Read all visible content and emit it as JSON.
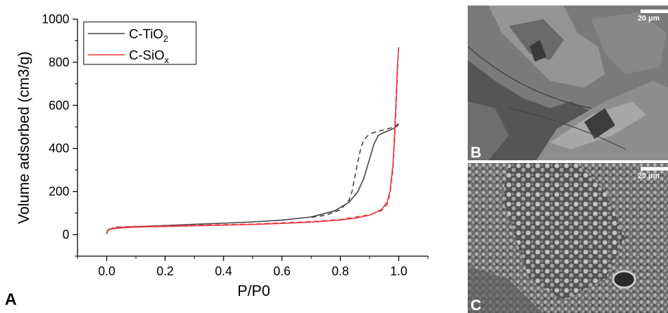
{
  "chart_data": {
    "type": "line",
    "panel_label": "A",
    "xlabel": "P/P0",
    "ylabel": "Volume adsorbed (cm3/g)",
    "xlim": [
      -0.1,
      1.1
    ],
    "ylim": [
      -100,
      1000
    ],
    "xticks": [
      "0.0",
      "0.2",
      "0.4",
      "0.6",
      "0.8",
      "1.0"
    ],
    "yticks": [
      "0",
      "200",
      "400",
      "600",
      "800",
      "1000"
    ],
    "legend_position": "top-left",
    "series": [
      {
        "name": "C-TiO2",
        "color": "#404040",
        "adsorption": {
          "x": [
            0.0,
            0.002,
            0.01,
            0.03,
            0.06,
            0.1,
            0.2,
            0.3,
            0.4,
            0.5,
            0.6,
            0.7,
            0.78,
            0.83,
            0.86,
            0.88,
            0.9,
            0.915,
            0.93,
            0.95,
            0.97,
            0.985,
            0.995,
            1.0
          ],
          "y": [
            3,
            18,
            26,
            31,
            34,
            37,
            42,
            48,
            53,
            59,
            67,
            82,
            110,
            150,
            200,
            260,
            350,
            420,
            460,
            475,
            485,
            495,
            505,
            515
          ]
        },
        "desorption": {
          "x": [
            1.0,
            0.985,
            0.96,
            0.93,
            0.91,
            0.895,
            0.88,
            0.87,
            0.86,
            0.85,
            0.84,
            0.83,
            0.8,
            0.75,
            0.7
          ],
          "y": [
            515,
            500,
            490,
            480,
            472,
            460,
            440,
            400,
            340,
            270,
            200,
            160,
            115,
            90,
            80
          ]
        }
      },
      {
        "name": "C-SiOx",
        "color": "#e8353b",
        "adsorption": {
          "x": [
            0.0,
            0.002,
            0.01,
            0.03,
            0.06,
            0.1,
            0.2,
            0.3,
            0.4,
            0.5,
            0.6,
            0.7,
            0.8,
            0.85,
            0.9,
            0.94,
            0.96,
            0.97,
            0.98,
            0.985,
            0.99,
            0.993,
            0.996,
            0.998,
            1.0
          ],
          "y": [
            2,
            16,
            24,
            29,
            32,
            35,
            38,
            41,
            44,
            47,
            52,
            58,
            68,
            76,
            90,
            115,
            150,
            200,
            320,
            450,
            600,
            700,
            790,
            840,
            870
          ]
        },
        "desorption": {
          "x": [
            1.0,
            0.998,
            0.996,
            0.99,
            0.985,
            0.98,
            0.97,
            0.96,
            0.94,
            0.9,
            0.8,
            0.7,
            0.5,
            0.3,
            0.1,
            0.02
          ],
          "y": [
            870,
            830,
            760,
            560,
            420,
            300,
            190,
            140,
            110,
            92,
            70,
            60,
            49,
            43,
            38,
            35
          ]
        }
      }
    ]
  },
  "legend": {
    "items": [
      {
        "base": "C-TiO",
        "sub": "2",
        "color": "#404040"
      },
      {
        "base": "C-SiO",
        "sub": "x",
        "color": "#e8353b"
      }
    ]
  },
  "images": {
    "panel_b": {
      "label": "B",
      "scale": "20 μm"
    },
    "panel_c": {
      "label": "C",
      "scale": "20 μm"
    }
  }
}
